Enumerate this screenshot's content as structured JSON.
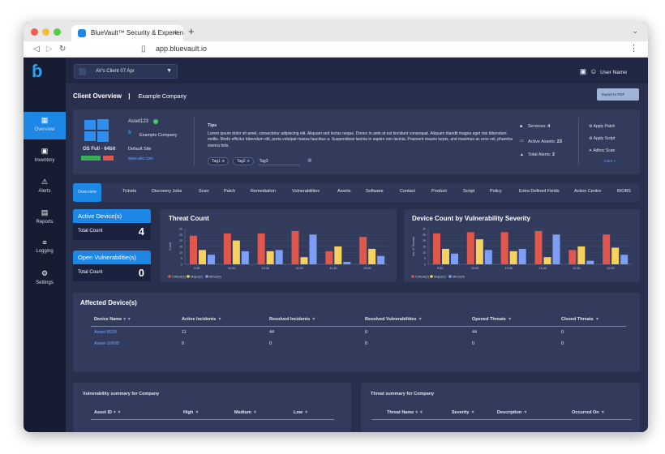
{
  "browser": {
    "tab_title": "BlueVault™ Security & Experien",
    "tab_close": "×",
    "new_tab": "+",
    "url": "app.bluevault.io",
    "colors": {
      "close": "#ee5e56",
      "minimize": "#f5bd3f",
      "maximize": "#5ac84b"
    }
  },
  "sidebar": {
    "items": [
      {
        "label": "Overview",
        "icon": "grid-icon",
        "glyph": "▦"
      },
      {
        "label": "Inventory",
        "icon": "inventory-icon",
        "glyph": "▣"
      },
      {
        "label": "Alerts",
        "icon": "warning-icon",
        "glyph": "⚠"
      },
      {
        "label": "Reports",
        "icon": "report-icon",
        "glyph": "▤"
      },
      {
        "label": "Logging",
        "icon": "list-icon",
        "glyph": "≡"
      },
      {
        "label": "Settings",
        "icon": "gear-icon",
        "glyph": "⚙"
      }
    ]
  },
  "header": {
    "client_select": "AV's Client 07 Apr",
    "user_name": "User Name"
  },
  "page": {
    "title": "Client Overview",
    "separator": "|",
    "company": "Example Company",
    "export_label": "Export to PDF"
  },
  "asset": {
    "name": "Asset123",
    "os": "OS Full - 64bit",
    "badge1": "",
    "badge2": "",
    "company": "Example Company",
    "default_site_label": "Default Site",
    "site_link": "www.abc.com",
    "tips_title": "Tips",
    "tips_text": "Lorem ipsum dolor sit amet, consectetur adipiscing elit. Aliquam sed lectus neque. Donec in ante at est tincidunt consequat. Aliquam blandit magna eget nisi bibendum mollis. Morbi efficitur bibendum elit, porta volutpat massa faucibus a. Suspendisse lacinia in sapien non lacinia. Praesent mauris turpis, and maximus ac eros vel, pharetra viverra felis.",
    "tags": [
      "Tag1",
      "Tag2",
      "Tag3"
    ],
    "services_label": "Services:",
    "services_value": "4",
    "active_assets_label": "Active Assets:",
    "active_assets_value": "23",
    "total_alerts_label": "Total Alerts:",
    "total_alerts_value": "2",
    "actions": [
      "Apply Patch",
      "Apply Script",
      "Adhoc Scan"
    ],
    "more": "more >"
  },
  "tabs": [
    "Overview",
    "Tickets",
    "Discovery Jobs",
    "Scan",
    "Patch",
    "Remediation",
    "Vulnerabilities",
    "Assets",
    "Software",
    "Contact",
    "Product",
    "Script",
    "Policy",
    "Extra Defined Fields",
    "Action Centre",
    "BIOBS"
  ],
  "stats": {
    "active_title": "Active Device(s)",
    "active_total_label": "Total Count",
    "active_total_value": "4",
    "vuln_title": "Open Vulnerabilitie(s)",
    "vuln_total_label": "Total Count",
    "vuln_total_value": "0"
  },
  "chart_data": [
    {
      "type": "bar",
      "title": "Threat Count",
      "ylabel": "Count",
      "categories": [
        "9:30",
        "10:00",
        "10:30",
        "11:00",
        "11:30",
        "12:00"
      ],
      "series": [
        {
          "name": "Critical(2)",
          "color": "#e0574e",
          "values": [
            24,
            26,
            26,
            28,
            11,
            23
          ]
        },
        {
          "name": "Major(2)",
          "color": "#f5d25f",
          "values": [
            12,
            20,
            11,
            6,
            15,
            13
          ]
        },
        {
          "name": "Minor(4)",
          "color": "#7d9ef5",
          "values": [
            8,
            11,
            12,
            25,
            2,
            7
          ]
        }
      ],
      "ylim": [
        0,
        30
      ],
      "legend": "bottom-left"
    },
    {
      "type": "bar",
      "title": "Device Count by Vulnerability Severity",
      "ylabel": "No. of Threats",
      "categories": [
        "9:30",
        "10:00",
        "10:30",
        "11:00",
        "11:30",
        "12:00"
      ],
      "series": [
        {
          "name": "Critical(2)",
          "color": "#e0574e",
          "values": [
            26,
            27,
            27,
            28,
            12,
            25
          ]
        },
        {
          "name": "Major(2)",
          "color": "#f5d25f",
          "values": [
            13,
            21,
            11,
            6,
            15,
            14
          ]
        },
        {
          "name": "Minor(4)",
          "color": "#7d9ef5",
          "values": [
            9,
            12,
            13,
            25,
            3,
            8
          ]
        }
      ],
      "ylim": [
        0,
        30
      ],
      "legend": "bottom-left"
    }
  ],
  "affected": {
    "title": "Affected Device(s)",
    "columns": [
      "Device Name",
      "Active Incidents",
      "Resolved Incidents",
      "Resolved Vulnerabilities",
      "Opened Threats",
      "Closed Threats"
    ],
    "rows": [
      [
        "Asset-8529",
        "11",
        "44",
        "0",
        "44",
        "0"
      ],
      [
        "Asset-10609",
        "0",
        "0",
        "0",
        "0",
        "0"
      ]
    ]
  },
  "vuln_summary": {
    "title": "Vulnerability summary for Company",
    "columns": [
      "Asset ID",
      "High",
      "Medium",
      "Low"
    ]
  },
  "threat_summary": {
    "title": "Threat summary for Company",
    "columns": [
      "Threat Name",
      "Severity",
      "Description",
      "Occurred On"
    ]
  }
}
